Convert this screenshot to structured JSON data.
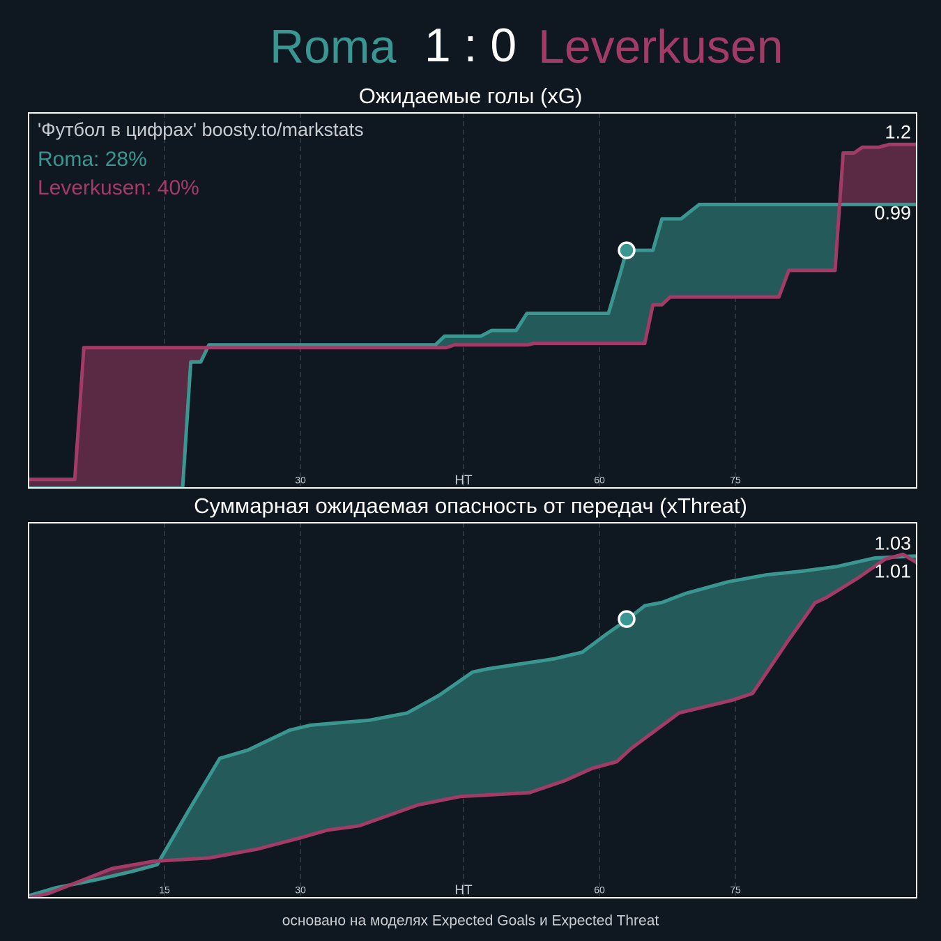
{
  "header": {
    "home": "Roma",
    "score": "1 : 0",
    "away": "Leverkusen"
  },
  "chart_data": [
    {
      "type": "line",
      "title": "Ожидаемые голы (xG)",
      "annotations": {
        "credit": "'Футбол в цифрах' boosty.to/markstats",
        "home_stat": "Roma: 28%",
        "away_stat": "Leverkusen: 40%"
      },
      "xlim": [
        0,
        98
      ],
      "ylim": [
        0,
        1.31
      ],
      "xticks": [
        15,
        30,
        {
          "value": 48,
          "label": "HT"
        },
        {
          "value": 63,
          "label": "60"
        },
        {
          "value": 78,
          "label": "75"
        }
      ],
      "grid": true,
      "goal": {
        "x": 66,
        "y": 0.83
      },
      "series": [
        {
          "color": "#3a9690",
          "x": [
            0,
            17,
            17.9,
            19,
            19.9,
            44.9,
            45.9,
            49.9,
            51.1,
            53.8,
            55,
            64,
            65.3,
            66,
            68.9,
            69.9,
            72,
            74,
            98
          ],
          "values": [
            0,
            0,
            0.44,
            0.44,
            0.5,
            0.5,
            0.53,
            0.53,
            0.55,
            0.55,
            0.61,
            0.61,
            0.75,
            0.83,
            0.83,
            0.94,
            0.94,
            0.99,
            0.99
          ]
        },
        {
          "color": "#a23b66",
          "x": [
            0,
            5.1,
            6.1,
            46.1,
            47,
            55.1,
            55.8,
            68,
            68.9,
            69.9,
            70.8,
            82.8,
            83.9,
            89,
            89.9,
            91.1,
            92,
            93.8,
            95,
            98
          ],
          "values": [
            0.03,
            0.03,
            0.49,
            0.49,
            0.5,
            0.5,
            0.505,
            0.505,
            0.64,
            0.64,
            0.667,
            0.667,
            0.76,
            0.76,
            1.17,
            1.17,
            1.19,
            1.19,
            1.2,
            1.2
          ]
        }
      ]
    },
    {
      "type": "line",
      "title": "Суммарная ожидаемая опасность от передач (xThreat)",
      "xlim": [
        0,
        98
      ],
      "ylim": [
        0,
        1.13
      ],
      "xticks": [
        15,
        30,
        {
          "value": 48,
          "label": "HT"
        },
        {
          "value": 63,
          "label": "60"
        },
        {
          "value": 78,
          "label": "75"
        }
      ],
      "grid": true,
      "goal": {
        "x": 66,
        "y": 0.84
      },
      "series": [
        {
          "color": "#3a9690",
          "x": [
            0,
            3,
            7.6,
            11.5,
            14.2,
            17.6,
            21.1,
            24.2,
            28.8,
            31.1,
            37.6,
            41.8,
            45.3,
            49,
            50.7,
            58,
            61.1,
            63.8,
            66,
            68,
            69.9,
            72.5,
            77.2,
            81.4,
            85.3,
            89.2,
            93.4,
            98
          ],
          "values": [
            0.006,
            0.03,
            0.055,
            0.08,
            0.1,
            0.26,
            0.42,
            0.445,
            0.505,
            0.52,
            0.535,
            0.557,
            0.61,
            0.68,
            0.69,
            0.72,
            0.74,
            0.795,
            0.837,
            0.88,
            0.89,
            0.917,
            0.952,
            0.973,
            0.984,
            0.998,
            1.024,
            1.03
          ]
        },
        {
          "color": "#a23b66",
          "x": [
            0,
            2.2,
            5.3,
            9.2,
            13.8,
            19.9,
            25.3,
            29.9,
            33,
            36.5,
            43,
            47.6,
            55.3,
            59.2,
            62.2,
            64.9,
            66.5,
            71.8,
            77.6,
            79.9,
            83.8,
            86.8,
            88,
            91.5,
            94.5,
            96.5,
            98
          ],
          "values": [
            0,
            0.013,
            0.046,
            0.088,
            0.11,
            0.12,
            0.147,
            0.18,
            0.204,
            0.217,
            0.28,
            0.305,
            0.317,
            0.353,
            0.39,
            0.41,
            0.45,
            0.557,
            0.595,
            0.616,
            0.774,
            0.889,
            0.904,
            0.963,
            1.02,
            1.035,
            1.01
          ]
        }
      ]
    }
  ],
  "footer": "основано на моделях Expected Goals и Expected Threat"
}
